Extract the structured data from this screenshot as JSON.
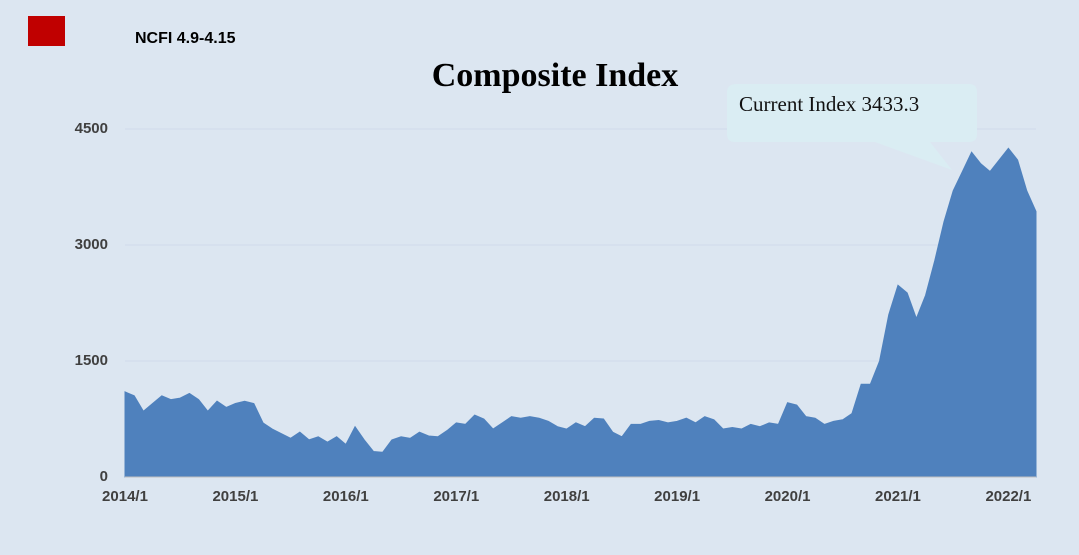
{
  "chart_data": {
    "type": "area",
    "title": "Composite Index",
    "annotation": "Current Index 3433.3",
    "categories": [
      "2014/1",
      null,
      null,
      null,
      null,
      null,
      null,
      null,
      null,
      null,
      null,
      null,
      "2015/1",
      null,
      null,
      null,
      null,
      null,
      null,
      null,
      null,
      null,
      null,
      null,
      "2016/1",
      null,
      null,
      null,
      null,
      null,
      null,
      null,
      null,
      null,
      null,
      null,
      "2017/1",
      null,
      null,
      null,
      null,
      null,
      null,
      null,
      null,
      null,
      null,
      null,
      "2018/1",
      null,
      null,
      null,
      null,
      null,
      null,
      null,
      null,
      null,
      null,
      null,
      "2019/1",
      null,
      null,
      null,
      null,
      null,
      null,
      null,
      null,
      null,
      null,
      null,
      "2020/1",
      null,
      null,
      null,
      null,
      null,
      null,
      null,
      null,
      null,
      null,
      null,
      "2021/1",
      null,
      null,
      null,
      null,
      null,
      null,
      null,
      null,
      null,
      null,
      null,
      "2022/1",
      null,
      null,
      null
    ],
    "series": [
      {
        "name": "NCFI 4.9-4.15",
        "color": "#4f81bd",
        "legend_color": "#c00000",
        "values": [
          1100,
          1050,
          850,
          950,
          1050,
          1000,
          1020,
          1080,
          1000,
          850,
          980,
          900,
          950,
          980,
          950,
          700,
          620,
          560,
          500,
          580,
          480,
          520,
          450,
          520,
          420,
          650,
          480,
          330,
          320,
          480,
          520,
          500,
          580,
          530,
          520,
          600,
          700,
          680,
          800,
          750,
          620,
          700,
          780,
          760,
          780,
          760,
          720,
          650,
          620,
          700,
          650,
          760,
          750,
          580,
          520,
          680,
          680,
          720,
          730,
          700,
          720,
          760,
          700,
          780,
          740,
          620,
          640,
          620,
          680,
          650,
          700,
          680,
          960,
          930,
          780,
          760,
          680,
          720,
          740,
          820,
          1200,
          1200,
          1500,
          2100,
          2480,
          2380,
          2050,
          2350,
          2800,
          3300,
          3700,
          3950,
          4200,
          4050,
          3950,
          4100,
          4250,
          4100,
          3700,
          3433.3
        ]
      }
    ],
    "ylim": [
      0,
      4500
    ],
    "yticks": [
      0,
      1500,
      3000,
      4500
    ],
    "grid": true
  }
}
